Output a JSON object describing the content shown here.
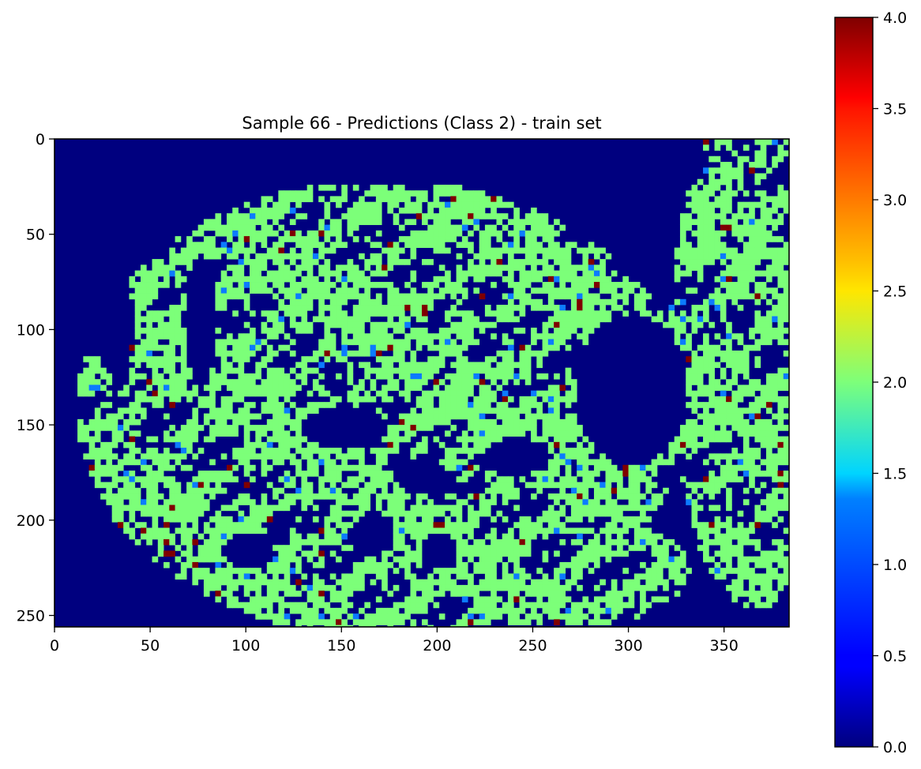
{
  "chart_data": {
    "type": "heatmap",
    "title": "Sample 66 - Predictions (Class 2) - train set",
    "xlabel": "",
    "ylabel": "",
    "colormap": "jet",
    "image_shape": [
      256,
      384
    ],
    "xlim": [
      0,
      384
    ],
    "ylim": [
      256,
      0
    ],
    "x_ticks": [
      0,
      50,
      100,
      150,
      200,
      250,
      300,
      350
    ],
    "y_ticks": [
      0,
      50,
      100,
      150,
      200,
      250
    ],
    "colorbar": {
      "range": [
        0.0,
        4.0
      ],
      "ticks": [
        0.0,
        0.5,
        1.0,
        1.5,
        2.0,
        2.5,
        3.0,
        3.5,
        4.0
      ],
      "tick_labels": [
        "0.0",
        "0.5",
        "1.0",
        "1.5",
        "2.0",
        "2.5",
        "3.0",
        "3.5",
        "4.0"
      ]
    },
    "values_present": [
      0,
      1,
      2,
      4
    ],
    "background_value": 0,
    "dominant_foreground_value": 2,
    "colors": {
      "0": "#00007f",
      "1": "#0c7bff",
      "2": "#7cff79",
      "4": "#7f0000"
    },
    "regions": [
      {
        "name": "main-tissue",
        "value": 2,
        "x_range": [
          8,
          325
        ],
        "y_range": [
          22,
          256
        ]
      },
      {
        "name": "right-tissue",
        "value": 2,
        "x_range": [
          323,
          384
        ],
        "y_range": [
          0,
          240
        ]
      }
    ]
  }
}
